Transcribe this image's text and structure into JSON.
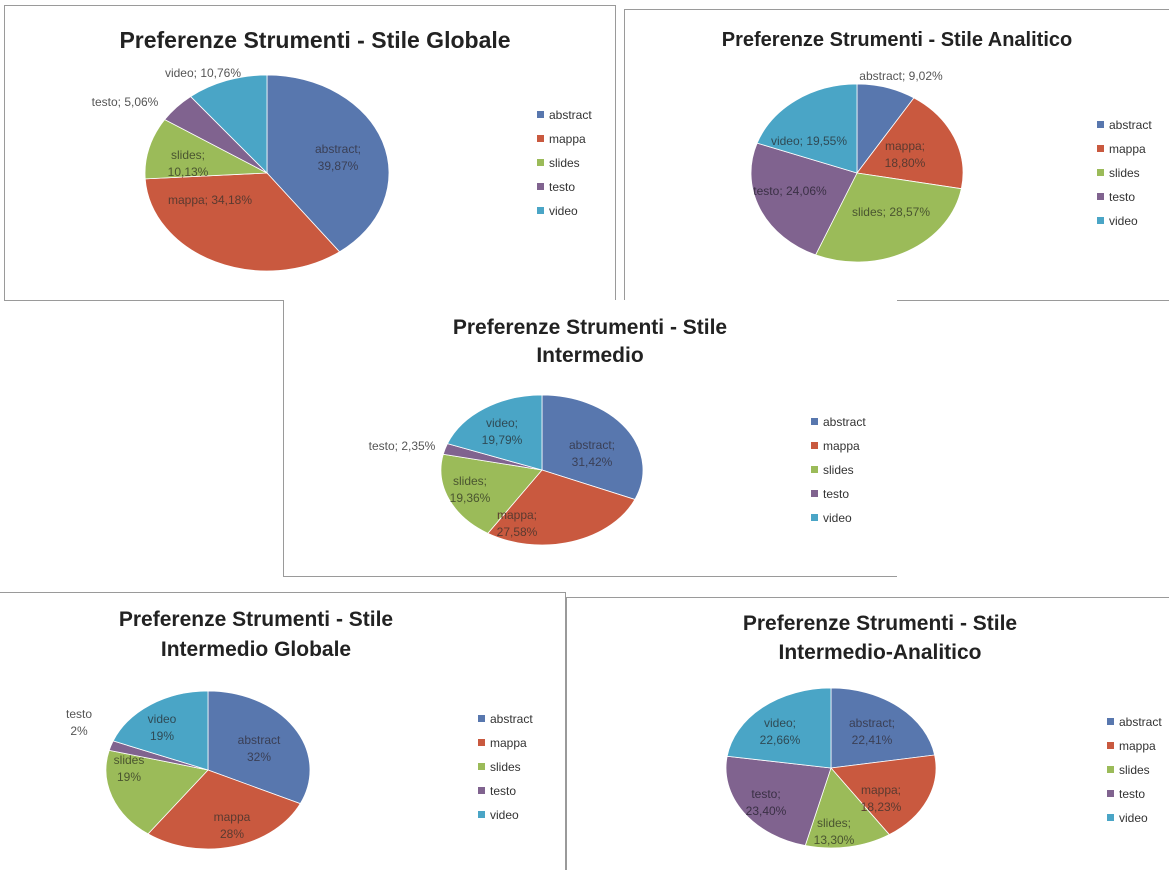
{
  "colors": {
    "abstract": "#5877AE",
    "mappa": "#C9593F",
    "slides": "#9BBB59",
    "testo": "#80638F",
    "video": "#4AA5C6"
  },
  "chart_data": [
    {
      "type": "pie",
      "title": "Preferenze Strumenti - Stile Globale",
      "categories": [
        "abstract",
        "mappa",
        "slides",
        "testo",
        "video"
      ],
      "values": [
        39.87,
        34.18,
        10.13,
        5.06,
        10.76
      ],
      "data_labels": [
        "abstract; 39,87%",
        "mappa; 34,18%",
        "slides; 10,13%",
        "testo; 5,06%",
        "video; 10,76%"
      ],
      "legend_position": "right"
    },
    {
      "type": "pie",
      "title": "Preferenze Strumenti - Stile Analitico",
      "categories": [
        "abstract",
        "mappa",
        "slides",
        "testo",
        "video"
      ],
      "values": [
        9.02,
        18.8,
        28.57,
        24.06,
        19.55
      ],
      "data_labels": [
        "abstract; 9,02%",
        "mappa; 18,80%",
        "slides; 28,57%",
        "testo; 24,06%",
        "video; 19,55%"
      ],
      "legend_position": "right"
    },
    {
      "type": "pie",
      "title": "Preferenze Strumenti - Stile Intermedio",
      "categories": [
        "abstract",
        "mappa",
        "slides",
        "testo",
        "video"
      ],
      "values": [
        31.42,
        27.58,
        19.36,
        2.35,
        19.29
      ],
      "data_labels": [
        "abstract; 31,42%",
        "mappa; 27,58%",
        "slides; 19,36%",
        "testo; 2,35%",
        "video; 19,29%"
      ],
      "legend_position": "right"
    },
    {
      "type": "pie",
      "title": "Preferenze Strumenti - Stile Intermedio Globale",
      "categories": [
        "abstract",
        "mappa",
        "slides",
        "testo",
        "video"
      ],
      "values": [
        32,
        28,
        19,
        2,
        19
      ],
      "data_labels": [
        "abstract 32%",
        "mappa 28%",
        "slides 19%",
        "testo 2%",
        "video 19%"
      ],
      "legend_position": "right"
    },
    {
      "type": "pie",
      "title": "Preferenze Strumenti - Stile Intermedio-Analitico",
      "categories": [
        "abstract",
        "mappa",
        "slides",
        "testo",
        "video"
      ],
      "values": [
        22.41,
        18.23,
        13.3,
        23.4,
        22.66
      ],
      "data_labels": [
        "abstract; 22,41%",
        "mappa; 18,23%",
        "slides; 13,30%",
        "testo; 23,40%",
        "video; 22,66%"
      ],
      "legend_position": "right"
    }
  ]
}
